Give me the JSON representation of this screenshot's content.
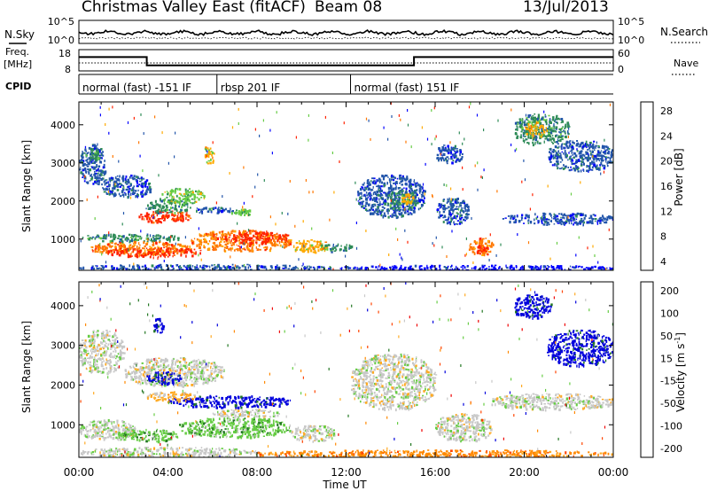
{
  "header": {
    "title": "Christmas Valley East (fitACF)",
    "beam": "Beam 08",
    "date": "13/Jul/2013"
  },
  "strips": {
    "nsky_label": "N.Sky",
    "nsky_ticks": [
      "10^5",
      "10^0"
    ],
    "nsearch_label": "N.Search",
    "nsearch_ticks": [
      "10^5",
      "10^0"
    ],
    "freq_label": "Freq.",
    "freq_unit": "[MHz]",
    "freq_ticks": [
      "18",
      "8"
    ],
    "nave_label": "Nave",
    "nave_ticks": [
      "60",
      "0"
    ],
    "cpid_label": "CPID",
    "cpid_segments": [
      {
        "label": "normal (fast) -151 IF",
        "start_h": 0,
        "end_h": 6.2
      },
      {
        "label": "rbsp 201 IF",
        "start_h": 6.2,
        "end_h": 12.2
      },
      {
        "label": "normal (fast) 151 IF",
        "start_h": 12.2,
        "end_h": 24
      }
    ]
  },
  "power_panel": {
    "ylabel": "Slant Range [km]",
    "yticks": [
      "4000",
      "3000",
      "2000",
      "1000"
    ],
    "colorbar_label": "Power [dB]",
    "colorbar_ticks": [
      "28",
      "24",
      "20",
      "16",
      "12",
      "8",
      "4"
    ]
  },
  "velocity_panel": {
    "ylabel": "Slant Range [km]",
    "yticks": [
      "4000",
      "3000",
      "2000",
      "1000"
    ],
    "colorbar_label": "Velocity [m s",
    "colorbar_label_sup": "-1",
    "colorbar_label_end": "]",
    "colorbar_ticks": [
      "200",
      "100",
      "50",
      "15",
      "-15",
      "-50",
      "-100",
      "-200"
    ]
  },
  "xaxis": {
    "label": "Time UT",
    "ticks": [
      "00:00",
      "04:00",
      "08:00",
      "12:00",
      "16:00",
      "20:00",
      "00:00"
    ]
  },
  "chart_data": {
    "type": "heatmap",
    "x_range_hours": [
      0,
      24
    ],
    "y_range_km": [
      180,
      4600
    ],
    "power_colors": [
      "#0000ff",
      "#2255aa",
      "#2e8b57",
      "#66cc44",
      "#ffaa00",
      "#ff7700",
      "#ff2200"
    ],
    "velocity_colors": [
      "#0000dd",
      "#227722",
      "#66cc44",
      "#c8c8c8",
      "#ffaa22",
      "#ff8800",
      "#ff4400",
      "#ee0000"
    ],
    "freq_profile": [
      [
        0,
        14.5
      ],
      [
        3.05,
        14.5
      ],
      [
        3.05,
        10.6
      ],
      [
        15.05,
        10.6
      ],
      [
        15.05,
        14.5
      ],
      [
        24,
        14.5
      ]
    ],
    "power_regions": [
      {
        "t0": 0.0,
        "t1": 1.2,
        "r0": 2450,
        "r1": 3500,
        "level": 1
      },
      {
        "t0": 0.3,
        "t1": 0.9,
        "r0": 3000,
        "r1": 3400,
        "level": 2
      },
      {
        "t0": 1.0,
        "t1": 3.2,
        "r0": 2100,
        "r1": 2700,
        "level": 1
      },
      {
        "t0": 2.6,
        "t1": 5.0,
        "r0": 1450,
        "r1": 1750,
        "level": 6
      },
      {
        "t0": 3.0,
        "t1": 5.0,
        "r0": 1700,
        "r1": 2050,
        "level": 2
      },
      {
        "t0": 3.6,
        "t1": 5.6,
        "r0": 1950,
        "r1": 2350,
        "level": 3
      },
      {
        "t0": 5.0,
        "t1": 7.0,
        "r0": 1700,
        "r1": 1850,
        "level": 1
      },
      {
        "t0": 6.8,
        "t1": 7.8,
        "r0": 1650,
        "r1": 1800,
        "level": 3
      },
      {
        "t0": 0.0,
        "t1": 4.5,
        "r0": 950,
        "r1": 1150,
        "level": 2
      },
      {
        "t0": 0.5,
        "t1": 5.0,
        "r0": 600,
        "r1": 950,
        "level": 5
      },
      {
        "t0": 1.2,
        "t1": 5.5,
        "r0": 550,
        "r1": 800,
        "level": 6
      },
      {
        "t0": 5.0,
        "t1": 9.5,
        "r0": 700,
        "r1": 1250,
        "level": 5
      },
      {
        "t0": 6.5,
        "t1": 9.5,
        "r0": 900,
        "r1": 1200,
        "level": 6
      },
      {
        "t0": 9.5,
        "t1": 11.2,
        "r0": 650,
        "r1": 1000,
        "level": 4
      },
      {
        "t0": 10.8,
        "t1": 12.3,
        "r0": 700,
        "r1": 900,
        "level": 2
      },
      {
        "t0": 0.0,
        "t1": 11.5,
        "r0": 200,
        "r1": 350,
        "level": 1
      },
      {
        "t0": 11.5,
        "t1": 24.0,
        "r0": 200,
        "r1": 330,
        "level": 0
      },
      {
        "t0": 12.5,
        "t1": 15.5,
        "r0": 1600,
        "r1": 2700,
        "level": 1
      },
      {
        "t0": 13.8,
        "t1": 15.2,
        "r0": 1800,
        "r1": 2300,
        "level": 2
      },
      {
        "t0": 14.4,
        "t1": 15.0,
        "r0": 1950,
        "r1": 2200,
        "level": 4
      },
      {
        "t0": 16.0,
        "t1": 17.5,
        "r0": 1400,
        "r1": 2100,
        "level": 1
      },
      {
        "t0": 17.5,
        "t1": 18.6,
        "r0": 600,
        "r1": 1050,
        "level": 5
      },
      {
        "t0": 17.8,
        "t1": 18.3,
        "r0": 650,
        "r1": 850,
        "level": 6
      },
      {
        "t0": 16.0,
        "t1": 17.2,
        "r0": 3000,
        "r1": 3500,
        "level": 1
      },
      {
        "t0": 19.5,
        "t1": 22.0,
        "r0": 3500,
        "r1": 4300,
        "level": 2
      },
      {
        "t0": 20.0,
        "t1": 21.0,
        "r0": 3700,
        "r1": 4100,
        "level": 4
      },
      {
        "t0": 21.0,
        "t1": 24.0,
        "r0": 2800,
        "r1": 3600,
        "level": 1
      },
      {
        "t0": 19.0,
        "t1": 24.0,
        "r0": 1400,
        "r1": 1700,
        "level": 1
      },
      {
        "t0": 5.6,
        "t1": 6.1,
        "r0": 3000,
        "r1": 3500,
        "level": 4
      }
    ],
    "velocity_regions": [
      {
        "t0": 0.0,
        "t1": 2.0,
        "r0": 2300,
        "r1": 3400,
        "level": 3
      },
      {
        "t0": 2.0,
        "t1": 6.5,
        "r0": 2000,
        "r1": 2700,
        "level": 3
      },
      {
        "t0": 3.0,
        "t1": 4.6,
        "r0": 2050,
        "r1": 2350,
        "level": 0
      },
      {
        "t0": 4.0,
        "t1": 9.5,
        "r0": 1450,
        "r1": 1750,
        "level": 0
      },
      {
        "t0": 3.0,
        "t1": 5.2,
        "r0": 1600,
        "r1": 1850,
        "level": 4
      },
      {
        "t0": 0.0,
        "t1": 2.5,
        "r0": 650,
        "r1": 1150,
        "level": 3
      },
      {
        "t0": 1.5,
        "t1": 4.5,
        "r0": 600,
        "r1": 900,
        "level": 2
      },
      {
        "t0": 4.5,
        "t1": 9.5,
        "r0": 700,
        "r1": 1200,
        "level": 2
      },
      {
        "t0": 6.0,
        "t1": 9.0,
        "r0": 1200,
        "r1": 1400,
        "level": 3
      },
      {
        "t0": 9.5,
        "t1": 11.5,
        "r0": 600,
        "r1": 1000,
        "level": 3
      },
      {
        "t0": 0.0,
        "t1": 8.0,
        "r0": 200,
        "r1": 450,
        "level": 3
      },
      {
        "t0": 8.0,
        "t1": 24.0,
        "r0": 200,
        "r1": 380,
        "level": 5
      },
      {
        "t0": 12.2,
        "t1": 16.0,
        "r0": 1400,
        "r1": 2800,
        "level": 3
      },
      {
        "t0": 16.0,
        "t1": 18.5,
        "r0": 600,
        "r1": 1300,
        "level": 3
      },
      {
        "t0": 19.5,
        "t1": 21.2,
        "r0": 3700,
        "r1": 4300,
        "level": 0
      },
      {
        "t0": 21.0,
        "t1": 24.0,
        "r0": 2500,
        "r1": 3400,
        "level": 0
      },
      {
        "t0": 3.3,
        "t1": 3.8,
        "r0": 3300,
        "r1": 3700,
        "level": 0
      },
      {
        "t0": 18.5,
        "t1": 24.0,
        "r0": 1400,
        "r1": 1800,
        "level": 3
      }
    ]
  }
}
